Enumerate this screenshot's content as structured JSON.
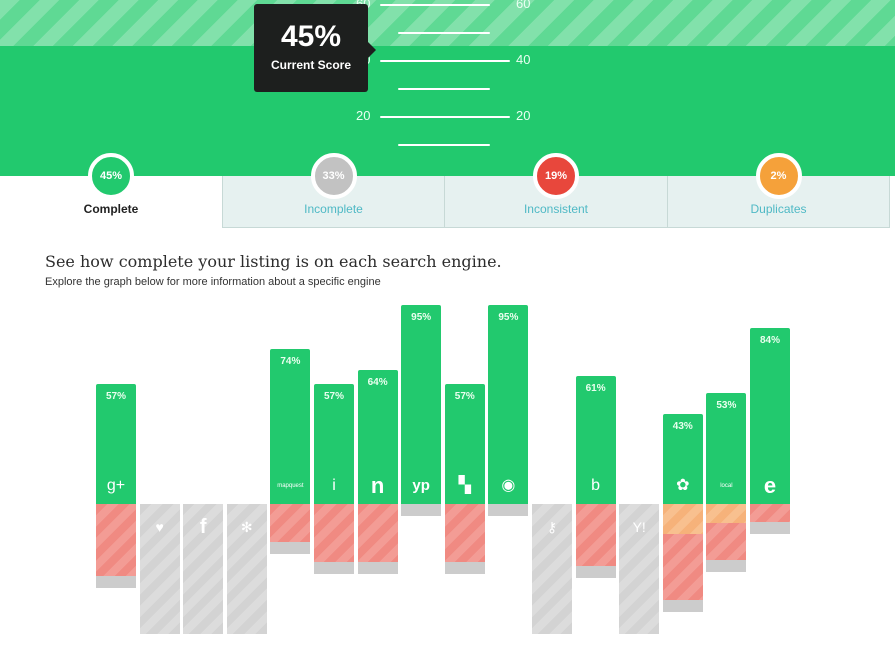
{
  "colors": {
    "green": "#22c96e",
    "gray": "#c9c9c9",
    "red": "#e8473c",
    "orange": "#f5a13a"
  },
  "gauge": {
    "labels_left": [
      "60",
      "40",
      "20"
    ],
    "labels_right": [
      "60",
      "40",
      "20"
    ]
  },
  "tooltip": {
    "value": "45%",
    "label": "Current Score"
  },
  "tabs": [
    {
      "percent": "45%",
      "label": "Complete",
      "active": true,
      "color": "#22c96e"
    },
    {
      "percent": "33%",
      "label": "Incomplete",
      "active": false,
      "color": "#c2c2c2"
    },
    {
      "percent": "19%",
      "label": "Inconsistent",
      "active": false,
      "color": "#e8473c"
    },
    {
      "percent": "2%",
      "label": "Duplicates",
      "active": false,
      "color": "#f5a13a"
    }
  ],
  "heading": {
    "title": "See how complete your listing is on each search engine.",
    "subtitle": "Explore the graph below for more information about a specific engine"
  },
  "engines": [
    {
      "icon": "google-plus-icon",
      "glyph": "g+",
      "complete": 57,
      "label": "57%",
      "inconsistent": 72,
      "duplicate": 0
    },
    {
      "icon": "heart-icon",
      "glyph": "♥",
      "complete": 0,
      "label": "",
      "inconsistent": 0,
      "duplicate": 0
    },
    {
      "icon": "facebook-icon",
      "glyph": "f",
      "complete": 0,
      "label": "",
      "inconsistent": 0,
      "duplicate": 0
    },
    {
      "icon": "yelp-icon",
      "glyph": "✻",
      "complete": 0,
      "label": "",
      "inconsistent": 0,
      "duplicate": 0
    },
    {
      "icon": "mapquest-icon",
      "glyph": "mapquest",
      "complete": 74,
      "label": "74%",
      "inconsistent": 38,
      "duplicate": 0
    },
    {
      "icon": "citysearch-icon",
      "glyph": "i",
      "complete": 57,
      "label": "57%",
      "inconsistent": 58,
      "duplicate": 0
    },
    {
      "icon": "n-icon",
      "glyph": "n",
      "complete": 64,
      "label": "64%",
      "inconsistent": 58,
      "duplicate": 0
    },
    {
      "icon": "yellowpages-icon",
      "glyph": "yp",
      "complete": 95,
      "label": "95%",
      "inconsistent": 0,
      "duplicate": 0
    },
    {
      "icon": "foursquare-grid-icon",
      "glyph": "▚",
      "complete": 57,
      "label": "57%",
      "inconsistent": 58,
      "duplicate": 0
    },
    {
      "icon": "target-icon",
      "glyph": "◉",
      "complete": 95,
      "label": "95%",
      "inconsistent": 0,
      "duplicate": 0
    },
    {
      "icon": "key-icon",
      "glyph": "⚷",
      "complete": 0,
      "label": "",
      "inconsistent": 0,
      "duplicate": 0
    },
    {
      "icon": "bing-icon",
      "glyph": "b",
      "complete": 61,
      "label": "61%",
      "inconsistent": 62,
      "duplicate": 0
    },
    {
      "icon": "yahoo-icon",
      "glyph": "Y!",
      "complete": 0,
      "label": "",
      "inconsistent": 0,
      "duplicate": 0
    },
    {
      "icon": "fish-icon",
      "glyph": "✿",
      "complete": 43,
      "label": "43%",
      "inconsistent": 66,
      "duplicate": 43
    },
    {
      "icon": "local-icon",
      "glyph": "local",
      "complete": 53,
      "label": "53%",
      "inconsistent": 37,
      "duplicate": 27
    },
    {
      "icon": "e-icon",
      "glyph": "e",
      "complete": 84,
      "label": "84%",
      "inconsistent": 18,
      "duplicate": 0
    }
  ]
}
